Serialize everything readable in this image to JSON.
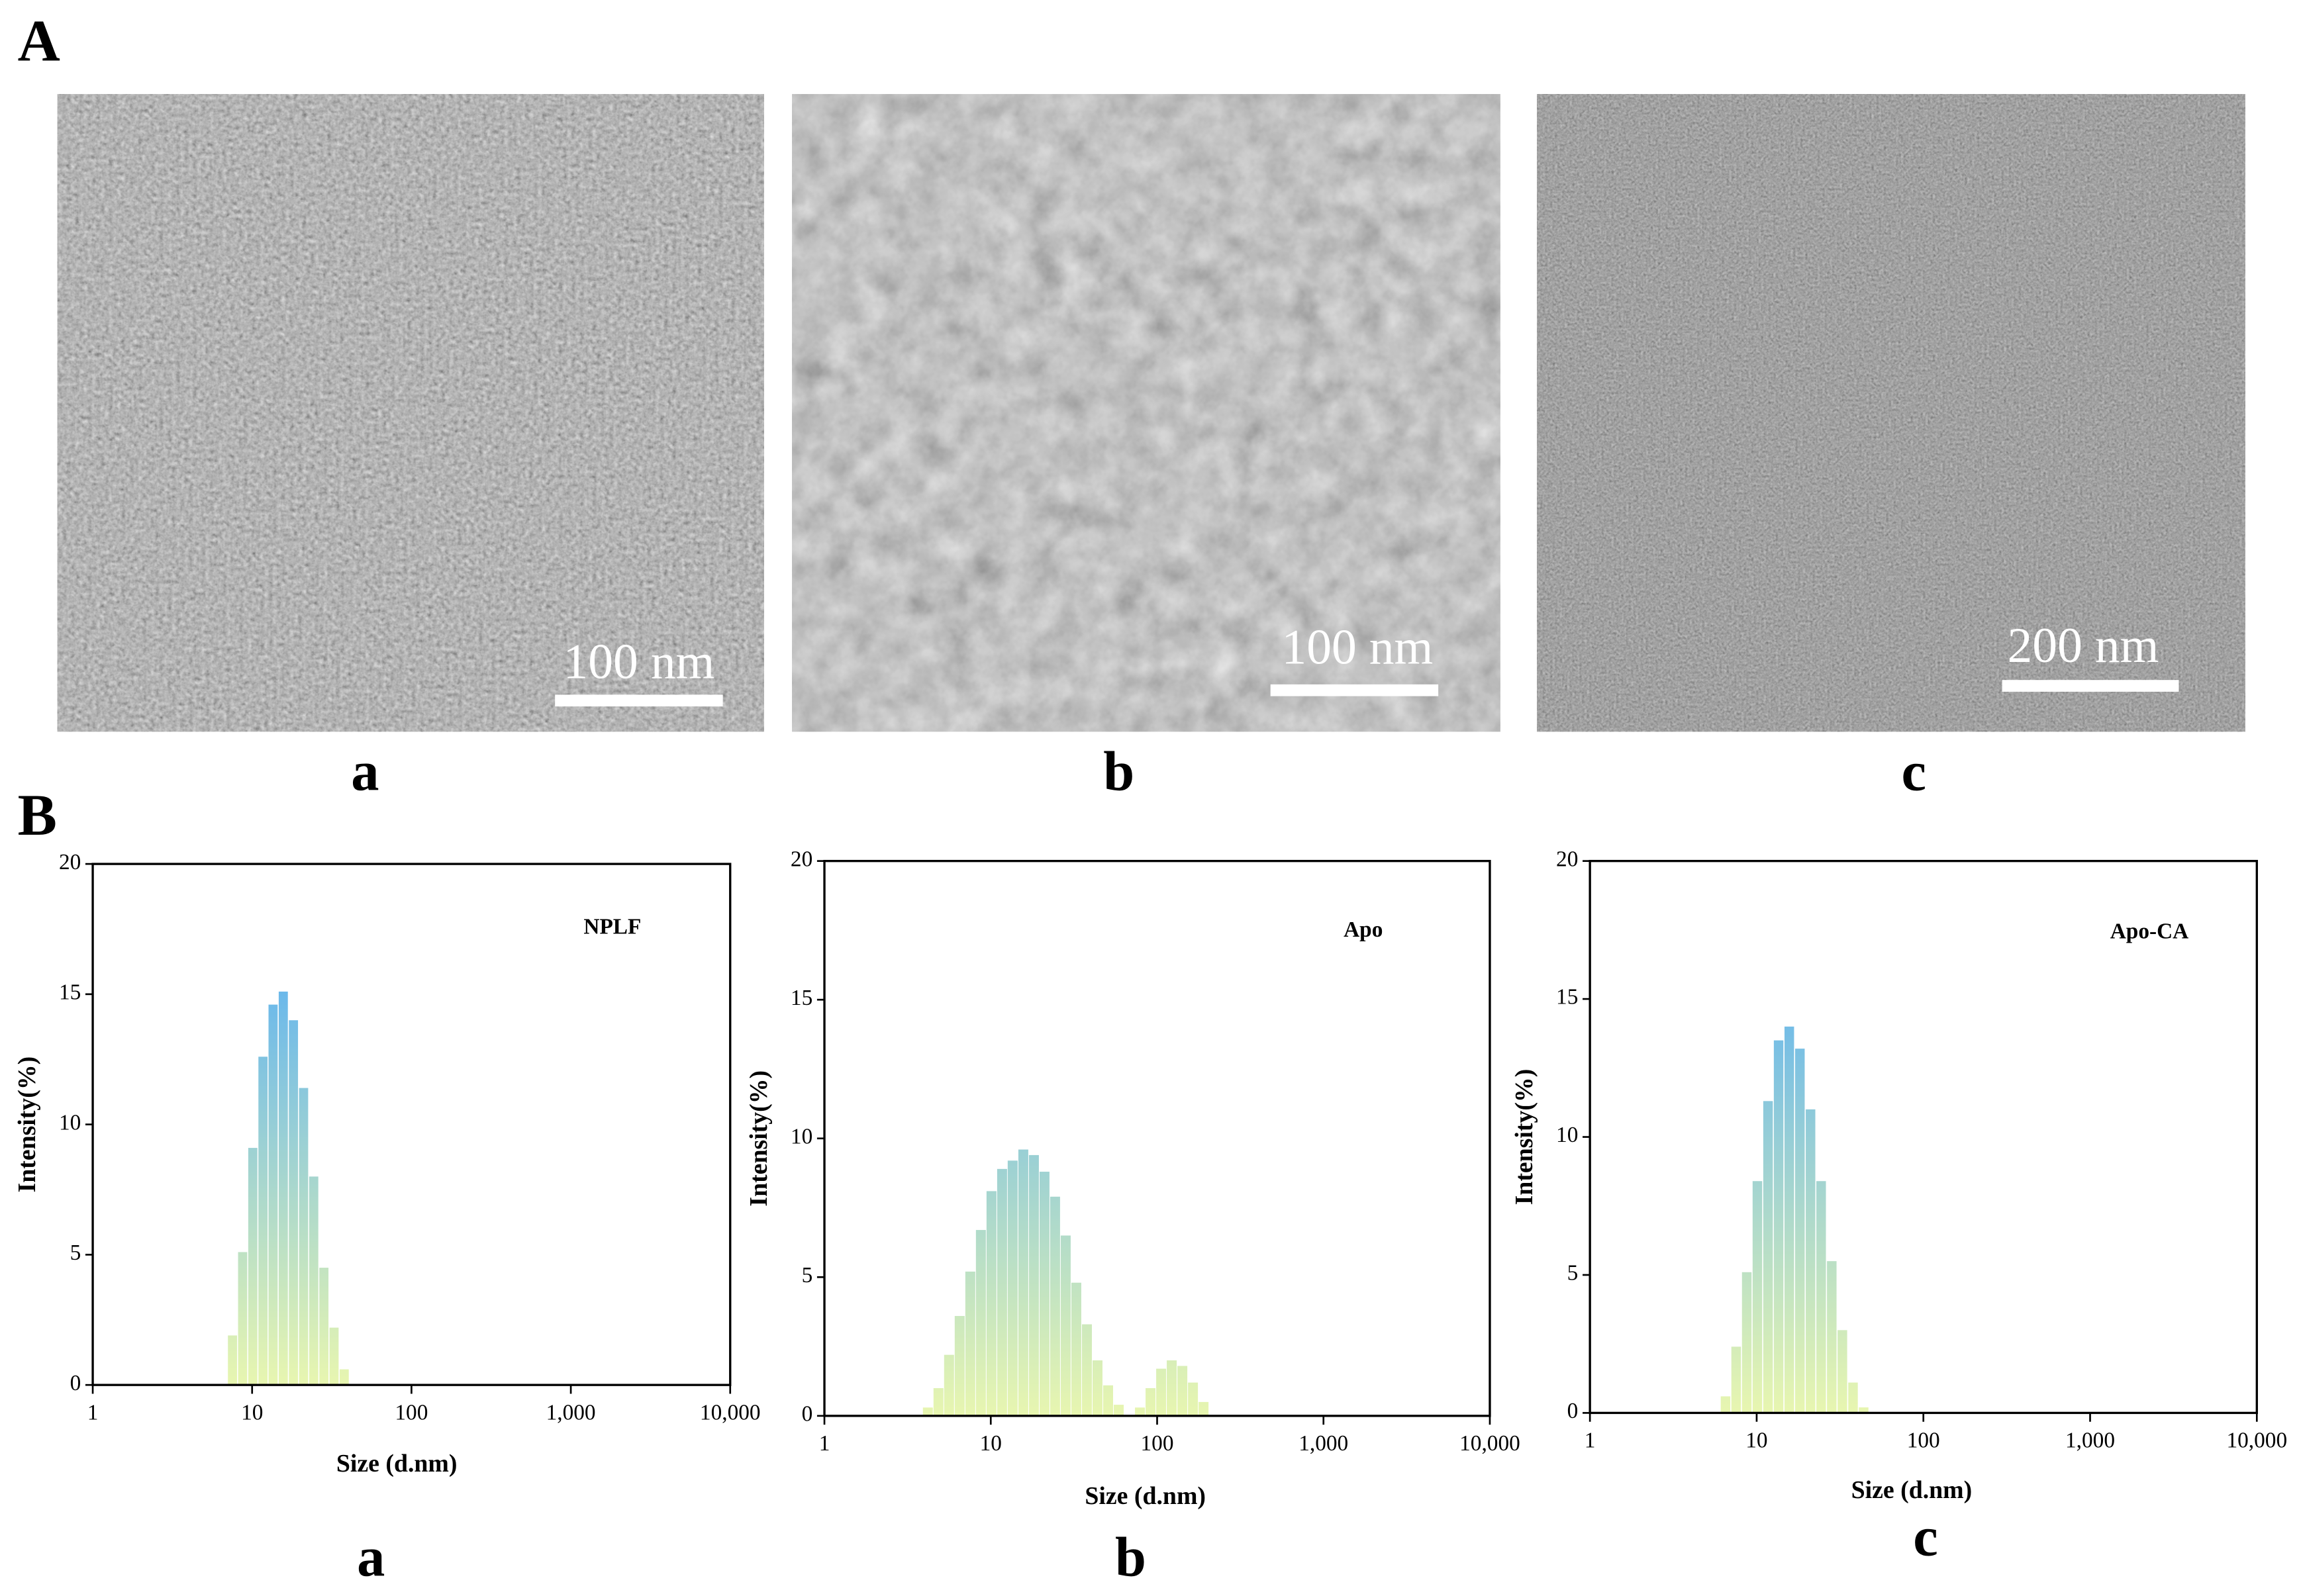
{
  "figure": {
    "panel_A": "A",
    "panel_B": "B",
    "tem": [
      {
        "label": "a",
        "scale_bar": "100 nm"
      },
      {
        "label": "b",
        "scale_bar": "100 nm"
      },
      {
        "label": "c",
        "scale_bar": "200 nm"
      }
    ]
  },
  "chart_data": [
    {
      "type": "bar",
      "panel_label": "a",
      "xscale": "log",
      "xlabel": "Size (d.nm)",
      "ylabel": "Intensity(%)",
      "xlim": [
        1,
        10000
      ],
      "ylim": [
        0,
        20
      ],
      "xticks": [
        1,
        10,
        100,
        {
          "value": 1000,
          "label": "1,000"
        },
        {
          "value": 10000,
          "label": "10,000"
        }
      ],
      "yticks": [
        0,
        5,
        10,
        15,
        20
      ],
      "gradient": [
        "#6cb9ea",
        "#e8f6b0"
      ],
      "x": [
        7.531,
        8.721,
        10.1,
        11.7,
        13.54,
        15.69,
        18.17,
        21.04,
        24.36,
        28.21,
        32.67,
        37.84
      ],
      "series": [
        {
          "name": "NPLF",
          "values": [
            1.9,
            5.1,
            9.1,
            12.6,
            14.6,
            15.1,
            14.0,
            11.4,
            8.0,
            4.5,
            2.2,
            0.6
          ]
        }
      ]
    },
    {
      "type": "bar",
      "panel_label": "b",
      "xscale": "log",
      "xlabel": "Size (d.nm)",
      "ylabel": "Intensity(%)",
      "xlim": [
        1,
        10000
      ],
      "ylim": [
        0,
        20
      ],
      "xticks": [
        1,
        10,
        100,
        {
          "value": 1000,
          "label": "1,000"
        },
        {
          "value": 10000,
          "label": "10,000"
        }
      ],
      "yticks": [
        0,
        5,
        10,
        15,
        20
      ],
      "gradient": [
        "#6cb9ea",
        "#e8f6b0"
      ],
      "x": [
        4.187,
        4.849,
        5.615,
        6.503,
        7.531,
        8.721,
        10.1,
        11.7,
        13.54,
        15.69,
        18.17,
        21.04,
        24.36,
        28.21,
        32.67,
        37.84,
        43.82,
        50.75,
        58.77,
        78.82,
        91.28,
        105.7,
        122.4,
        141.8,
        164.2,
        190.1
      ],
      "series": [
        {
          "name": "Apo",
          "values": [
            0.3,
            1.0,
            2.2,
            3.6,
            5.2,
            6.7,
            8.1,
            8.9,
            9.2,
            9.6,
            9.4,
            8.8,
            7.9,
            6.5,
            4.8,
            3.3,
            2.0,
            1.1,
            0.4,
            0.3,
            1.0,
            1.7,
            2.0,
            1.8,
            1.2,
            0.5
          ]
        }
      ]
    },
    {
      "type": "bar",
      "panel_label": "c",
      "xscale": "log",
      "xlabel": "Size (d.nm)",
      "ylabel": "Intensity(%)",
      "xlim": [
        1,
        10000
      ],
      "ylim": [
        0,
        20
      ],
      "xticks": [
        1,
        10,
        100,
        {
          "value": 1000,
          "label": "1,000"
        },
        {
          "value": 10000,
          "label": "10,000"
        }
      ],
      "yticks": [
        0,
        5,
        10,
        15,
        20
      ],
      "gradient": [
        "#6cb9ea",
        "#e8f6b0"
      ],
      "x": [
        6.503,
        7.531,
        8.721,
        10.1,
        11.7,
        13.54,
        15.69,
        18.17,
        21.04,
        24.36,
        28.21,
        32.67,
        37.84,
        43.82
      ],
      "series": [
        {
          "name": "Apo-CA",
          "values": [
            0.6,
            2.4,
            5.1,
            8.4,
            11.3,
            13.5,
            14.0,
            13.2,
            11.0,
            8.4,
            5.5,
            3.0,
            1.1,
            0.2
          ]
        }
      ]
    }
  ]
}
